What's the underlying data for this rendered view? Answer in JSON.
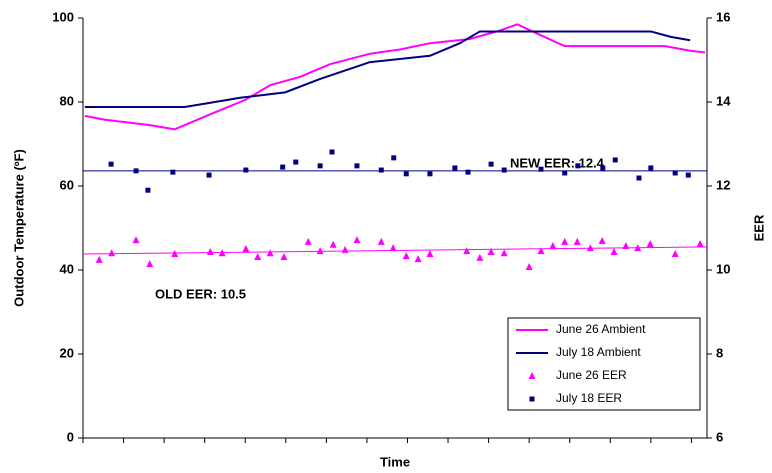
{
  "chart_data": {
    "type": "line",
    "x_label": "Time",
    "y_label": "Outdoor Temperature (ºF)",
    "y2_label": "EER",
    "xlim": [
      0,
      100
    ],
    "xticks": [
      0,
      6.5,
      13,
      19.5,
      26,
      32.5,
      39,
      45.5,
      52,
      58.5,
      65,
      71.5,
      78,
      84.5,
      91,
      97.5
    ],
    "ylim": [
      0,
      100
    ],
    "yticks": [
      0,
      20,
      40,
      60,
      80,
      100
    ],
    "y2lim": [
      6,
      16
    ],
    "y2ticks": [
      6,
      8,
      10,
      12,
      14,
      16
    ],
    "legend": "lower right",
    "series": [
      {
        "name": "June 26 Ambient",
        "color": "#ff00ff",
        "style": "line",
        "x": [
          0.3,
          3.4,
          10.7,
          14.7,
          20.3,
          26,
          30,
          34.8,
          39.6,
          46,
          50.8,
          55.6,
          62,
          66.8,
          69.6,
          73.2,
          77.2,
          82.9,
          93.3,
          97.3,
          99.7
        ],
        "values": [
          76.7,
          75.8,
          74.5,
          73.5,
          77,
          80.5,
          84,
          86,
          89,
          91.5,
          92.5,
          94,
          95,
          97,
          98.5,
          96,
          93.3,
          93.3,
          93.3,
          92.2,
          91.8
        ]
      },
      {
        "name": "July 18 Ambient",
        "color": "#000080",
        "style": "line",
        "x": [
          0.3,
          16.3,
          20.3,
          25.2,
          32.4,
          38,
          46,
          55.6,
          60.4,
          63.6,
          82.9,
          91,
          94.2,
          97.3
        ],
        "values": [
          78.8,
          78.8,
          79.8,
          81,
          82.3,
          85.5,
          89.5,
          91,
          94,
          96.8,
          96.8,
          96.8,
          95.5,
          94.7
        ]
      },
      {
        "name": "June 26 EER",
        "color": "#ff00ff",
        "style": "triangle",
        "axis": "y2",
        "x": [
          2.6,
          4.6,
          8.5,
          10.7,
          14.7,
          20.4,
          22.3,
          26.1,
          28,
          30,
          32.2,
          36.1,
          38,
          40.1,
          42,
          43.9,
          47.8,
          49.7,
          51.8,
          53.7,
          55.6,
          61.5,
          63.6,
          65.4,
          67.5,
          71.5,
          73.4,
          75.3,
          77.2,
          79.2,
          81.3,
          83.2,
          85.1,
          87,
          88.9,
          90.9,
          94.9,
          98.9
        ],
        "values": [
          10.24,
          10.4,
          10.71,
          10.14,
          10.38,
          10.43,
          10.4,
          10.5,
          10.31,
          10.4,
          10.31,
          10.67,
          10.45,
          10.6,
          10.48,
          10.71,
          10.67,
          10.52,
          10.33,
          10.26,
          10.38,
          10.45,
          10.29,
          10.43,
          10.4,
          10.07,
          10.45,
          10.57,
          10.67,
          10.67,
          10.52,
          10.69,
          10.43,
          10.57,
          10.52,
          10.62,
          10.38,
          10.62
        ]
      },
      {
        "name": "July 18 EER",
        "color": "#000080",
        "style": "square",
        "axis": "y2",
        "x": [
          4.5,
          8.5,
          10.4,
          14.4,
          20.2,
          26.1,
          32,
          34.1,
          38,
          39.9,
          43.9,
          47.8,
          49.8,
          51.8,
          55.6,
          59.6,
          61.7,
          65.4,
          67.5,
          73.4,
          77.2,
          79.3,
          83.3,
          85.3,
          89.1,
          91,
          94.9,
          97
        ],
        "values": [
          12.52,
          12.36,
          11.9,
          12.33,
          12.26,
          12.38,
          12.45,
          12.57,
          12.48,
          12.81,
          12.48,
          12.38,
          12.67,
          12.29,
          12.29,
          12.43,
          12.33,
          12.52,
          12.38,
          12.4,
          12.31,
          12.48,
          12.43,
          12.62,
          12.19,
          12.43,
          12.31,
          12.26
        ]
      }
    ],
    "trendlines": [
      {
        "color": "#000080",
        "axis": "y2",
        "x": [
          0,
          100
        ],
        "values": [
          12.36,
          12.36
        ]
      },
      {
        "color": "#ff00ff",
        "axis": "y2",
        "x": [
          0,
          100
        ],
        "values": [
          10.38,
          10.55
        ]
      }
    ],
    "annotations": [
      {
        "text": "NEW EER:  12.4",
        "color": "#000080"
      },
      {
        "text": "OLD EER:  10.5",
        "color": "#ff00ff"
      }
    ]
  }
}
